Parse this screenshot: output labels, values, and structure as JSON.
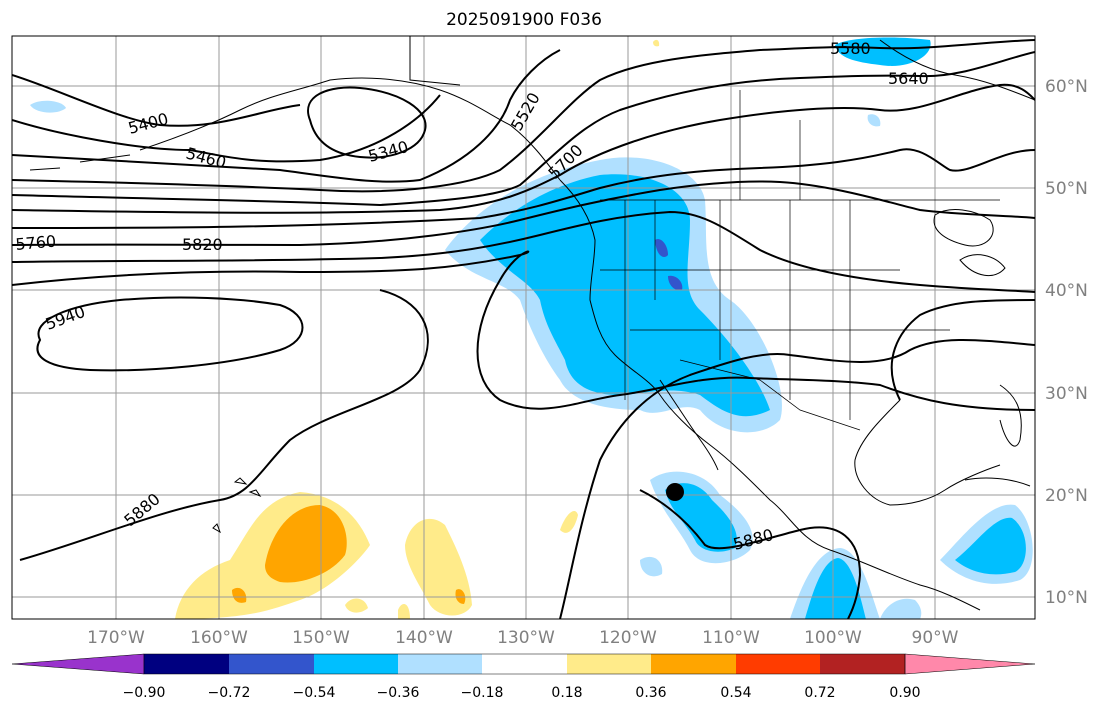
{
  "title": "2025091900 F036",
  "map": {
    "longitude_labels": [
      "170°W",
      "160°W",
      "150°W",
      "140°W",
      "130°W",
      "120°W",
      "110°W",
      "100°W",
      "90°W"
    ],
    "latitude_labels": [
      "60°N",
      "50°N",
      "40°N",
      "30°N",
      "20°N",
      "10°N"
    ],
    "contour_labels": [
      "5400",
      "5460",
      "5340",
      "5520",
      "5580",
      "5640",
      "5700",
      "5760",
      "5820",
      "5940",
      "5880",
      "5880"
    ],
    "contour_color": "#000000",
    "marker": {
      "label": "",
      "color": "#000000"
    }
  },
  "colorbar": {
    "colors": [
      "#9933cc",
      "#000080",
      "#3355cc",
      "#00bfff",
      "#b0e0ff",
      "#ffffff",
      "#ffeb8a",
      "#ffa500",
      "#ff3c00",
      "#b22222",
      "#ff88aa"
    ],
    "labels": [
      "−0.90",
      "−0.72",
      "−0.54",
      "−0.36",
      "−0.18",
      "0.18",
      "0.36",
      "0.54",
      "0.72",
      "0.90"
    ]
  }
}
